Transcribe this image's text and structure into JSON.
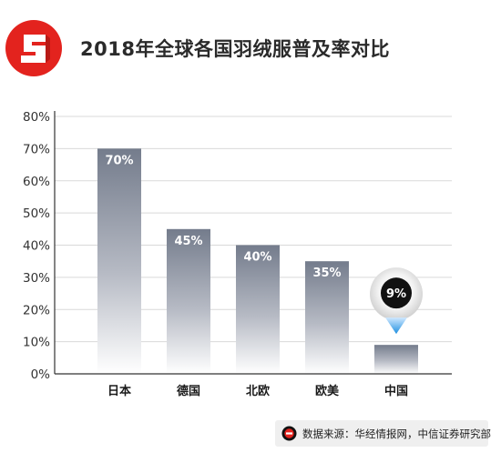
{
  "header": {
    "title": "2018年全球各国羽绒服普及率对比"
  },
  "chart_data": {
    "type": "bar",
    "categories": [
      "日本",
      "德国",
      "北欧",
      "欧美",
      "中国"
    ],
    "values": [
      70,
      45,
      40,
      35,
      9
    ],
    "value_labels": [
      "70%",
      "45%",
      "40%",
      "35%",
      "9%"
    ],
    "ylim": [
      0,
      80
    ],
    "yticks": [
      "0%",
      "10%",
      "20%",
      "30%",
      "40%",
      "50%",
      "60%",
      "70%",
      "80%"
    ],
    "grid": true,
    "highlight_category": "中国",
    "bar_color_top": "#747c8c",
    "bar_color_bottom": "#ffffff",
    "highlight_marker_color": "#111111",
    "highlight_pointer_color": "#1e8fe0"
  },
  "source": {
    "text": "数据来源：华经情报网，中信证券研究部"
  },
  "colors": {
    "brand": "#e3231e",
    "grid": "#d9d9d9",
    "axis": "#333333"
  }
}
